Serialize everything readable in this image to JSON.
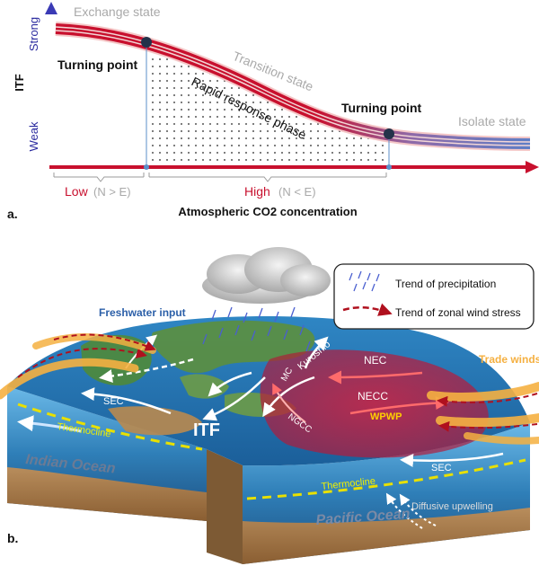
{
  "panel_a": {
    "y_axis_label": "ITF",
    "y_strong": "Strong",
    "y_weak": "Weak",
    "x_axis_label": "Atmospheric CO2 concentration",
    "x_low": "Low",
    "x_low_note": "(N > E)",
    "x_high": "High",
    "x_high_note": "(N < E)",
    "state_exchange": "Exchange state",
    "state_transition": "Transition state",
    "state_isolate": "Isolate state",
    "turning_point_1": "Turning point",
    "turning_point_2": "Turning point",
    "rapid_phase": "Rapid response phase",
    "panel_letter": "a."
  },
  "panel_b": {
    "panel_letter": "b.",
    "freshwater": "Freshwater input",
    "legend_precip": "Trend of precipitation",
    "legend_wind": "Trend of zonal wind stress",
    "trade_winds": "Trade winds",
    "itf": "ITF",
    "sec_left": "SEC",
    "sec_right": "SEC",
    "mc": "MC",
    "kuroshio": "Kuroshio",
    "nec": "NEC",
    "necc": "NECC",
    "ngcc": "NGCC",
    "wpwp": "WPWP",
    "thermocline_left": "Thermocline",
    "thermocline_right": "Thermocline",
    "indian_ocean": "Indian Ocean",
    "pacific_ocean": "Pacific Ocean",
    "diffusive": "Diffusive upwelling"
  },
  "colors": {
    "axis_red": "#c8102e",
    "axis_blue": "#2b2b9f",
    "wpwp_red": "#c0203a",
    "trade_yellow": "#f5b041",
    "thermocline_yellow": "#e8e000"
  }
}
